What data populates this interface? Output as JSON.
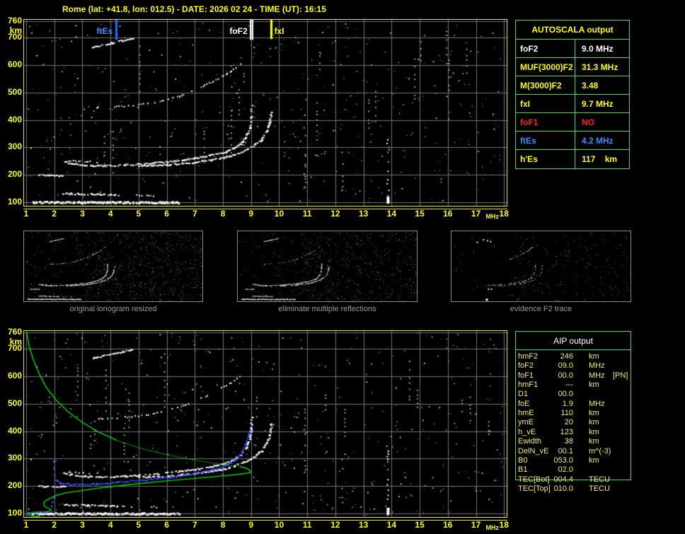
{
  "page_title": "Rome (lat: +41.8, lon: 012.5) - DATE: 2026 02 24 - TIME (UT): 16:15",
  "colors": {
    "accent_yellow": "#ffff00",
    "grid_gray": "#757575",
    "table_green_border": "#49d849",
    "marker_blue": "#1a6eff",
    "marker_white": "#ffffff",
    "marker_yellow": "#ffff00",
    "foF1_red": "#ff2020",
    "profile_green": "#00dd00",
    "restored_blue": "#2a3cff",
    "caption_gray": "#9a9a9a"
  },
  "autoscala": {
    "header": "AUTOSCALA output",
    "rows": [
      {
        "label": "foF2",
        "value": "9.0 MHz",
        "color": "#ffffff"
      },
      {
        "label": "MUF(3000)F2",
        "value": "31.3 MHz",
        "color": "#ffff00"
      },
      {
        "label": "M(3000)F2",
        "value": "3.48",
        "color": "#ffff00"
      },
      {
        "label": "fxI",
        "value": "9.7 MHz",
        "color": "#ffff00"
      },
      {
        "label": "foF1",
        "value": "NO",
        "color": "#ff2020"
      },
      {
        "label": "ftEs",
        "value": "4.2 MHz",
        "color": "#3a8cff"
      },
      {
        "label": "h'Es",
        "value": "117    km",
        "color": "#ffff00"
      }
    ]
  },
  "aip": {
    "header": "AIP output",
    "rows": [
      {
        "label": "hmF2",
        "value": "246",
        "unit": "km",
        "extra": ""
      },
      {
        "label": "foF2",
        "value": "09.0",
        "unit": "MHz",
        "extra": ""
      },
      {
        "label": "foF1",
        "value": "00.0",
        "unit": "MHz",
        "extra": "[PN]"
      },
      {
        "label": "hmF1",
        "value": "---",
        "unit": "km",
        "extra": ""
      },
      {
        "label": "D1",
        "value": "00.0",
        "unit": "",
        "extra": ""
      },
      {
        "label": "foE",
        "value": "1.9",
        "unit": "MHz",
        "extra": ""
      },
      {
        "label": "hmE",
        "value": "110",
        "unit": "km",
        "extra": ""
      },
      {
        "label": "ymE",
        "value": "20",
        "unit": "km",
        "extra": ""
      },
      {
        "label": "h_vE",
        "value": "123",
        "unit": "km",
        "extra": ""
      },
      {
        "label": "Ewidth",
        "value": "38",
        "unit": "km",
        "extra": ""
      },
      {
        "label": "DelN_vE",
        "value": "00.1",
        "unit": "m^(-3)",
        "extra": ""
      },
      {
        "label": "B0",
        "value": "053.0",
        "unit": "km",
        "extra": ""
      },
      {
        "label": "B1",
        "value": "02.0",
        "unit": "",
        "extra": ""
      },
      {
        "label": "TEC[Bot]",
        "value": "004.4",
        "unit": "TECU",
        "extra": ""
      },
      {
        "label": "TEC[Top]",
        "value": "010.0",
        "unit": "TECU",
        "extra": ""
      }
    ]
  },
  "thumbnails": [
    {
      "caption": "original ionogram resized",
      "content": "all"
    },
    {
      "caption": "eliminate multiple reflections",
      "content": "reduced"
    },
    {
      "caption": "evidence F2 trace",
      "content": "f2_only"
    }
  ],
  "chart_data": [
    {
      "id": "main_ionogram",
      "type": "scatter",
      "description": "Vertical-incidence ionogram: virtual height (km) vs sounding frequency (MHz)",
      "x_axis": {
        "label": "MHz",
        "min": 1,
        "max": 18,
        "ticks": [
          1,
          2,
          3,
          4,
          5,
          6,
          7,
          8,
          9,
          10,
          11,
          12,
          13,
          14,
          15,
          16,
          17,
          18
        ]
      },
      "y_axis": {
        "label": "km",
        "min": 100,
        "max": 760,
        "ticks": [
          760,
          700,
          600,
          500,
          400,
          300,
          200,
          100
        ]
      },
      "markers": [
        {
          "name": "ftEs",
          "freq_mhz": 4.2,
          "color": "#1a6eff",
          "label_color": "#3a8cff",
          "label_side": "left",
          "line_bottom_km": 692
        },
        {
          "name": "foF2",
          "freq_mhz": 9.0,
          "color": "#ffffff",
          "label_color": "#ffffff",
          "label_side": "left",
          "line_bottom_km": 692
        },
        {
          "name": "fxI",
          "freq_mhz": 9.7,
          "color": "#ffff00",
          "label_color": "#ffff00",
          "label_side": "right",
          "line_bottom_km": 695
        }
      ],
      "traces": [
        {
          "name": "F2-ordinary",
          "style": "bright",
          "points": [
            [
              2.3,
              250
            ],
            [
              2.6,
              243
            ],
            [
              3.0,
              238
            ],
            [
              3.5,
              235
            ],
            [
              4.0,
              236
            ],
            [
              4.5,
              238
            ],
            [
              5.0,
              241
            ],
            [
              5.5,
              245
            ],
            [
              6.0,
              250
            ],
            [
              6.5,
              256
            ],
            [
              7.0,
              263
            ],
            [
              7.5,
              272
            ],
            [
              8.0,
              284
            ],
            [
              8.35,
              298
            ],
            [
              8.6,
              315
            ],
            [
              8.8,
              340
            ],
            [
              8.92,
              372
            ],
            [
              8.98,
              410
            ],
            [
              9.0,
              455
            ]
          ]
        },
        {
          "name": "F2-extraordinary",
          "style": "bright",
          "points": [
            [
              5.0,
              234
            ],
            [
              5.5,
              236
            ],
            [
              6.0,
              239
            ],
            [
              6.5,
              243
            ],
            [
              7.0,
              248
            ],
            [
              7.5,
              255
            ],
            [
              8.0,
              264
            ],
            [
              8.4,
              276
            ],
            [
              8.8,
              292
            ],
            [
              9.1,
              310
            ],
            [
              9.35,
              330
            ],
            [
              9.55,
              362
            ],
            [
              9.65,
              395
            ],
            [
              9.7,
              430
            ]
          ]
        },
        {
          "name": "F2-second-hop",
          "style": "dotted",
          "points": [
            [
              3.4,
              447
            ],
            [
              4.2,
              450
            ],
            [
              5.0,
              458
            ],
            [
              5.8,
              472
            ],
            [
              6.5,
              492
            ],
            [
              7.2,
              522
            ],
            [
              7.8,
              552
            ],
            [
              8.3,
              580
            ],
            [
              8.7,
              612
            ]
          ]
        },
        {
          "name": "Es-second-hop-streak",
          "style": "bright",
          "points": [
            [
              3.35,
              668
            ],
            [
              4.0,
              682
            ],
            [
              4.75,
              700
            ]
          ]
        },
        {
          "name": "Es-200km",
          "style": "bright",
          "points": [
            [
              1.45,
              201
            ],
            [
              2.35,
              199
            ]
          ]
        },
        {
          "name": "Es-250km",
          "style": "dotted",
          "points": [
            [
              2.5,
              253
            ],
            [
              3.5,
              249
            ]
          ]
        },
        {
          "name": "Es-130km",
          "style": "bright",
          "points": [
            [
              2.3,
              134
            ],
            [
              4.2,
              129
            ]
          ]
        },
        {
          "name": "Es-130km-faint",
          "style": "dotted",
          "points": [
            [
              4.2,
              129
            ],
            [
              5.6,
              126
            ]
          ]
        },
        {
          "name": "E-layer-100km",
          "style": "thick",
          "points": [
            [
              1.2,
              103
            ],
            [
              6.4,
              102
            ]
          ]
        }
      ],
      "isolated_dots": [
        [
          1.35,
          637
        ],
        [
          1.15,
          300
        ]
      ],
      "interference_columns": [
        {
          "freq_mhz": 13.85,
          "km_range": [
            95,
            330
          ],
          "bright": true
        },
        {
          "freq_mhz": 10.9,
          "km_range": [
            150,
            420
          ],
          "bright": false
        },
        {
          "freq_mhz": 12.25,
          "km_range": [
            140,
            300
          ],
          "bright": false
        }
      ]
    },
    {
      "id": "profile_ionogram",
      "type": "scatter",
      "description": "Same ionogram with AIP electron-density profile (green) and restored trace (blue)",
      "background_traces": "main_ionogram",
      "x_axis": {
        "label": "MHz",
        "min": 1,
        "max": 18,
        "ticks": [
          1,
          2,
          3,
          4,
          5,
          6,
          7,
          8,
          9,
          10,
          11,
          12,
          13,
          14,
          15,
          16,
          17,
          18
        ]
      },
      "y_axis": {
        "label": "km",
        "min": 100,
        "max": 760,
        "ticks": [
          760,
          700,
          600,
          500,
          400,
          300,
          200,
          100
        ]
      },
      "green_profile": {
        "color": "#00dd00",
        "topside": [
          [
            1.02,
            760
          ],
          [
            1.1,
            712
          ],
          [
            1.25,
            662
          ],
          [
            1.45,
            612
          ],
          [
            1.7,
            562
          ],
          [
            2.05,
            515
          ],
          [
            2.5,
            470
          ],
          [
            3.0,
            432
          ],
          [
            3.55,
            398
          ],
          [
            4.2,
            368
          ],
          [
            5.0,
            341
          ],
          [
            5.9,
            318
          ],
          [
            6.9,
            298
          ],
          [
            7.9,
            281
          ],
          [
            8.6,
            272
          ]
        ],
        "dotted_from_mhz": 4.4,
        "nose": [
          [
            8.6,
            272
          ],
          [
            8.9,
            262
          ],
          [
            9.02,
            250
          ]
        ],
        "bottomside": [
          [
            9.02,
            250
          ],
          [
            8.6,
            243
          ],
          [
            8.0,
            237
          ],
          [
            7.0,
            228
          ],
          [
            6.0,
            219
          ],
          [
            5.0,
            209
          ],
          [
            4.2,
            200
          ],
          [
            3.4,
            190
          ],
          [
            2.8,
            181
          ],
          [
            2.4,
            175
          ],
          [
            2.1,
            167
          ],
          [
            1.9,
            158
          ],
          [
            1.7,
            147
          ],
          [
            1.62,
            140
          ]
        ],
        "e_loop": [
          [
            1.62,
            140
          ],
          [
            1.64,
            128
          ],
          [
            1.76,
            120
          ],
          [
            1.88,
            114
          ],
          [
            1.84,
            108
          ],
          [
            1.6,
            105
          ],
          [
            1.3,
            104
          ],
          [
            1.1,
            101
          ],
          [
            1.06,
            96
          ],
          [
            1.2,
            91
          ],
          [
            1.5,
            88
          ]
        ]
      },
      "blue_trace": {
        "color": "#2a3cff",
        "points": [
          [
            2.03,
            224
          ],
          [
            2.2,
            212
          ],
          [
            2.6,
            208
          ],
          [
            3.0,
            208
          ],
          [
            3.5,
            210
          ],
          [
            4.0,
            214
          ],
          [
            4.5,
            218
          ],
          [
            5.2,
            224
          ],
          [
            6.0,
            233
          ],
          [
            6.8,
            244
          ],
          [
            7.4,
            256
          ],
          [
            8.0,
            272
          ],
          [
            8.4,
            294
          ],
          [
            8.65,
            325
          ],
          [
            8.8,
            358
          ],
          [
            8.9,
            390
          ],
          [
            8.95,
            410
          ]
        ],
        "extra_dots": [
          [
            1.96,
            293
          ],
          [
            1.97,
            268
          ],
          [
            1.99,
            243
          ],
          [
            1.88,
            130
          ],
          [
            1.92,
            145
          ],
          [
            1.96,
            162
          ]
        ],
        "e_segment": [
          [
            1.05,
            104
          ],
          [
            1.9,
            107
          ]
        ]
      }
    }
  ]
}
